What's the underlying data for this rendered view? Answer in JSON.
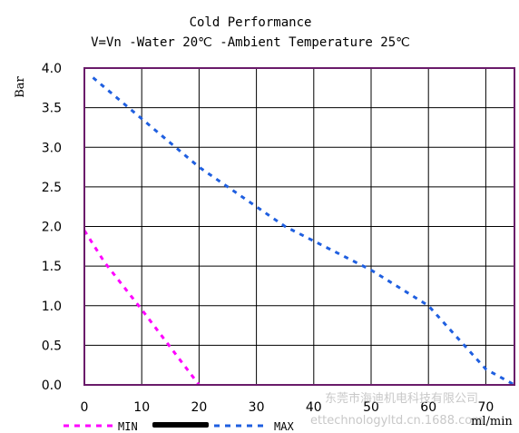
{
  "chart_data": {
    "type": "line",
    "title": "Cold Performance",
    "subtitle": "V=Vn -Water 20℃ -Ambient Temperature 25℃",
    "xlabel": "ml/min",
    "ylabel": "Bar",
    "xlim": [
      0,
      75
    ],
    "ylim": [
      0,
      4.0
    ],
    "x_ticks": [
      "0",
      "10",
      "20",
      "30",
      "40",
      "50",
      "60",
      "70"
    ],
    "y_ticks": [
      "0.0",
      "0.5",
      "1.0",
      "1.5",
      "2.0",
      "2.5",
      "3.0",
      "3.5",
      "4.0"
    ],
    "grid": true,
    "legend_position": "bottom",
    "series": [
      {
        "name": "MIN",
        "color": "#ff00ff",
        "style": "dashed",
        "points": [
          [
            0,
            1.95
          ],
          [
            3.5,
            1.55
          ],
          [
            10,
            0.95
          ],
          [
            20,
            0.0
          ]
        ]
      },
      {
        "name": "MAX",
        "color": "#1f5fe0",
        "style": "dashed",
        "points": [
          [
            1.5,
            3.88
          ],
          [
            20,
            2.75
          ],
          [
            35,
            2.0
          ],
          [
            50,
            1.45
          ],
          [
            60,
            1.0
          ],
          [
            70,
            0.2
          ],
          [
            75,
            0.0
          ]
        ]
      }
    ]
  },
  "watermark": {
    "line1": "东莞市海迪机电科技有限公司",
    "line2": "ettechnologyltd.cn.1688.com"
  }
}
